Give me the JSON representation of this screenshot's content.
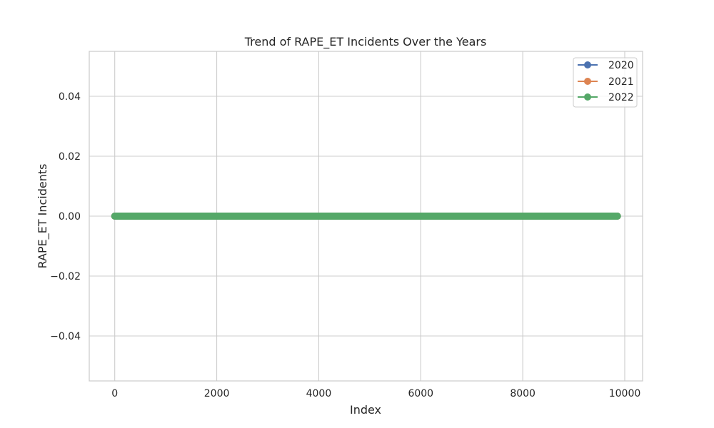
{
  "chart_data": {
    "type": "line",
    "title": "Trend of RAPE_ET Incidents Over the Years",
    "xlabel": "Index",
    "ylabel": "RAPE_ET Incidents",
    "xlim": [
      -500,
      10350
    ],
    "ylim": [
      -0.055,
      0.055
    ],
    "xticks": [
      0,
      2000,
      4000,
      6000,
      8000,
      10000
    ],
    "xtick_labels": [
      "0",
      "2000",
      "4000",
      "6000",
      "8000",
      "10000"
    ],
    "yticks": [
      0.04,
      0.02,
      0.0,
      -0.02,
      -0.04
    ],
    "ytick_labels": [
      "0.04",
      "0.02",
      "0.00",
      "−0.02",
      "−0.04"
    ],
    "grid": true,
    "legend_position": "top-right",
    "x_range": [
      0,
      9850
    ],
    "series": [
      {
        "name": "2020",
        "color": "#4c72b0",
        "x_start": 0,
        "x_end": 9850,
        "value": 0.0
      },
      {
        "name": "2021",
        "color": "#dd8452",
        "x_start": 0,
        "x_end": 9850,
        "value": 0.0
      },
      {
        "name": "2022",
        "color": "#55a868",
        "x_start": 0,
        "x_end": 9850,
        "value": 0.0
      }
    ]
  }
}
